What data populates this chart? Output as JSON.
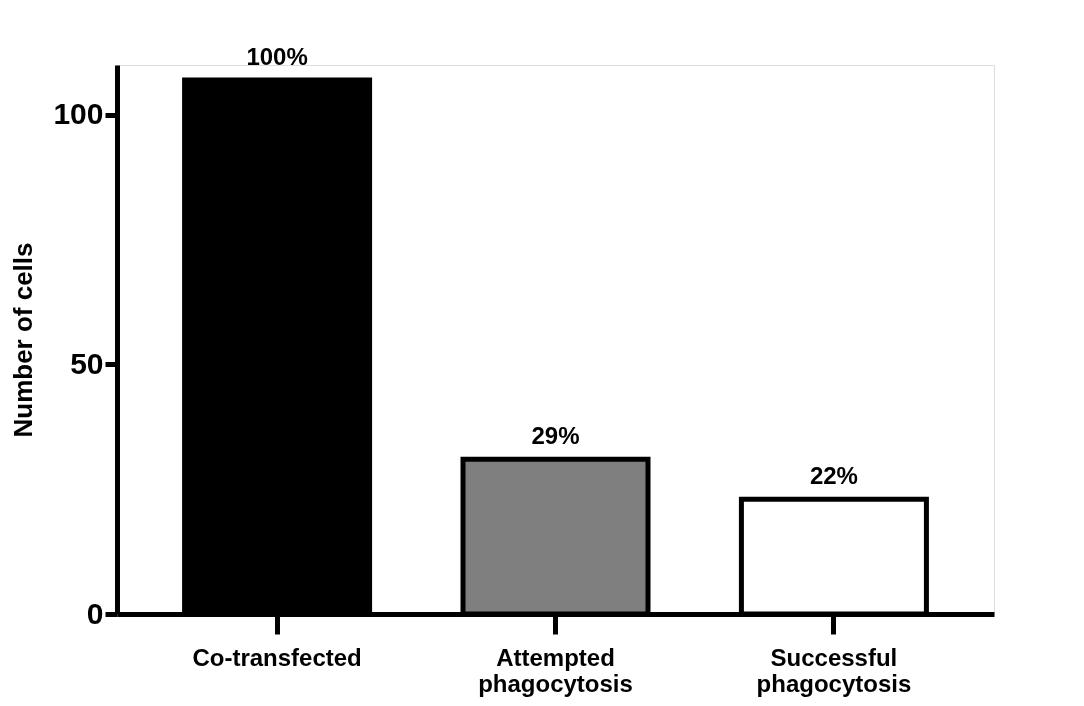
{
  "chart_data": {
    "type": "bar",
    "ylabel": "Number of cells",
    "categories": [
      "Co-transfected",
      "Attempted phagocytosis",
      "Successful phagocytosis"
    ],
    "values": [
      107,
      31,
      23
    ],
    "colors": [
      "#000000",
      "#7f7f7f",
      "#ffffff"
    ],
    "annotations": [
      {
        "text": "100%",
        "x": "Co-transfected",
        "y": 107
      },
      {
        "text": "29%",
        "x": "Attempted phagocytosis",
        "y": 31
      },
      {
        "text": "22%",
        "x": "Successful phagocytosis",
        "y": 23
      }
    ],
    "ylim": [
      0,
      110
    ],
    "yticks": [
      0,
      50,
      100
    ],
    "grid": false
  }
}
